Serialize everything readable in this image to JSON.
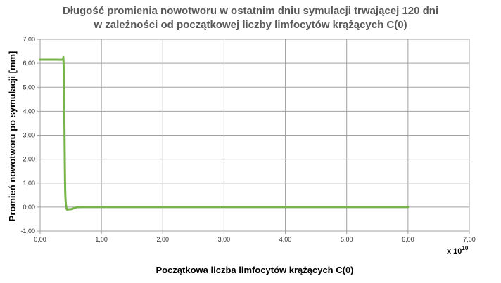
{
  "chart_data": {
    "type": "line",
    "title_lines": [
      "Długość promienia nowotworu w ostatnim dniu symulacji trwającej 120 dni",
      "w zależności od początkowej liczby limfocytów krążących C(0)"
    ],
    "xlabel": "Początkowa liczba limfocytów krążących  C(0)",
    "ylabel": "Promień nowotworu po symulacji [mm]",
    "x_multiplier": {
      "base": "x 10",
      "exponent": "10"
    },
    "xlim": [
      0,
      7
    ],
    "ylim": [
      -1,
      7
    ],
    "x_ticks": [
      "0,00",
      "1,00",
      "2,00",
      "3,00",
      "4,00",
      "5,00",
      "6,00",
      "7,00"
    ],
    "y_ticks": [
      "-1,00",
      "0,00",
      "1,00",
      "2,00",
      "3,00",
      "4,00",
      "5,00",
      "6,00",
      "7,00"
    ],
    "grid": true,
    "series": [
      {
        "color": "#77b54a",
        "x": [
          0.0,
          0.2,
          0.36,
          0.38,
          0.39,
          0.4,
          0.41,
          0.43,
          0.47,
          0.52,
          0.58,
          0.7,
          1.5,
          3.0,
          4.5,
          6.0
        ],
        "y": [
          6.15,
          6.15,
          6.15,
          6.18,
          5.0,
          2.5,
          0.6,
          -0.05,
          -0.09,
          -0.08,
          -0.02,
          0.0,
          0.0,
          0.0,
          0.0,
          0.0
        ]
      }
    ]
  }
}
